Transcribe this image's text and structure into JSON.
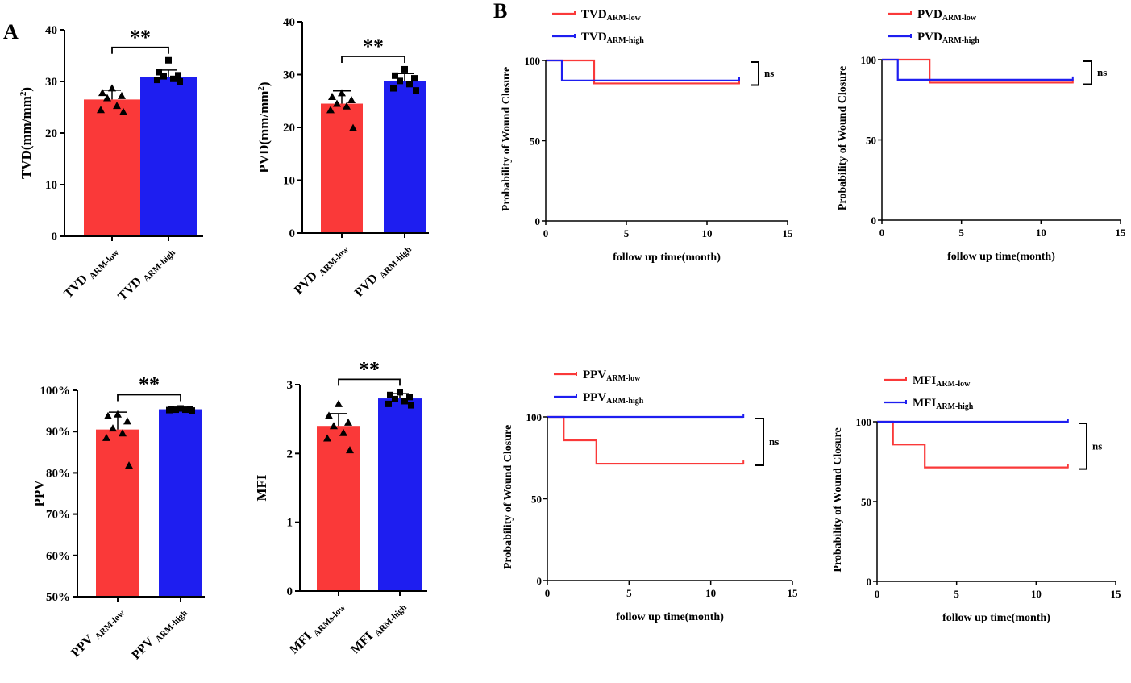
{
  "panels": {
    "A": "A",
    "B": "B"
  },
  "colors": {
    "low": "#fa3939",
    "high": "#1e1ef0",
    "axis": "#000000"
  },
  "chart_data": [
    {
      "id": "tvd-bar",
      "type": "bar",
      "ylabel": "TVD(mm/mm",
      "ylabel_sup": "2",
      "ylabel_suffix": ")",
      "ylim": [
        0,
        40
      ],
      "yticks": [
        0,
        10,
        20,
        30,
        40
      ],
      "ytick_labels": [
        "0",
        "10",
        "20",
        "30",
        "40"
      ],
      "categories": [
        {
          "main": "TVD",
          "sub": "ARM-low"
        },
        {
          "main": "TVD",
          "sub": "ARM-high"
        }
      ],
      "values": [
        26.5,
        30.8
      ],
      "errors": [
        1.8,
        1.4
      ],
      "points": [
        [
          28.7,
          27.8,
          27.2,
          26.8,
          25.3,
          24.5,
          24.1
        ],
        [
          34.1,
          31.8,
          31.2,
          31.0,
          30.5,
          30.3,
          30.0
        ]
      ],
      "significance": "**"
    },
    {
      "id": "pvd-bar",
      "type": "bar",
      "ylabel": "PVD(mm/mm",
      "ylabel_sup": "2",
      "ylabel_suffix": ")",
      "ylim": [
        0,
        40
      ],
      "yticks": [
        0,
        10,
        20,
        30,
        40
      ],
      "ytick_labels": [
        "0",
        "10",
        "20",
        "30",
        "40"
      ],
      "categories": [
        {
          "main": "PVD",
          "sub": "ARM-low"
        },
        {
          "main": "PVD",
          "sub": "ARM-high"
        }
      ],
      "values": [
        24.5,
        28.8
      ],
      "errors": [
        2.4,
        1.4
      ],
      "points": [
        [
          26.5,
          25.8,
          25.2,
          24.5,
          24.0,
          23.3,
          19.9
        ],
        [
          31.0,
          29.8,
          29.3,
          28.8,
          28.2,
          27.4,
          27.0
        ]
      ],
      "significance": "**"
    },
    {
      "id": "ppv-bar",
      "type": "bar",
      "ylabel": "PPV",
      "ylim": [
        50,
        100
      ],
      "yticks": [
        50,
        60,
        70,
        80,
        90,
        100
      ],
      "ytick_labels": [
        "50%",
        "60%",
        "70%",
        "80%",
        "90%",
        "100%"
      ],
      "categories": [
        {
          "main": "PPV",
          "sub": "ARM-low"
        },
        {
          "main": "PPV",
          "sub": "ARM-high"
        }
      ],
      "values": [
        90.5,
        95.4
      ],
      "errors": [
        4.2,
        0.4
      ],
      "points": [
        [
          94.2,
          93.8,
          92.5,
          90.8,
          89.6,
          88.5,
          81.8
        ],
        [
          95.6,
          95.5,
          95.4,
          95.3,
          95.3,
          95.2,
          95.1
        ]
      ],
      "significance": "**"
    },
    {
      "id": "mfi-bar",
      "type": "bar",
      "ylabel": "MFI",
      "ylim": [
        0,
        3
      ],
      "yticks": [
        0,
        1,
        2,
        3
      ],
      "ytick_labels": [
        "0",
        "1",
        "2",
        "3"
      ],
      "categories": [
        {
          "main": "MFI",
          "sub": "ARMs-low"
        },
        {
          "main": "MFI",
          "sub": "ARM-high"
        }
      ],
      "values": [
        2.4,
        2.8
      ],
      "errors": [
        0.18,
        0.07
      ],
      "points": [
        [
          2.72,
          2.55,
          2.45,
          2.4,
          2.3,
          2.22,
          2.05
        ],
        [
          2.89,
          2.85,
          2.82,
          2.79,
          2.76,
          2.72,
          2.7
        ]
      ],
      "significance": "**"
    },
    {
      "id": "tvd-km",
      "type": "line",
      "xlabel": "follow up time(month)",
      "ylabel": "Probability of Wound Closure",
      "xlim": [
        0,
        15
      ],
      "ylim": [
        0,
        100
      ],
      "xticks": [
        0,
        5,
        10,
        15
      ],
      "yticks": [
        0,
        50,
        100
      ],
      "series": [
        {
          "name": "TVD",
          "name_sub": "ARM-low",
          "x": [
            0,
            3,
            3,
            12
          ],
          "y": [
            100,
            100,
            85.7,
            85.7
          ]
        },
        {
          "name": "TVD",
          "name_sub": "ARM-high",
          "x": [
            0,
            1,
            1,
            12
          ],
          "y": [
            100,
            100,
            87.5,
            87.5
          ]
        }
      ],
      "annotation": "ns",
      "bracket": [
        85.7,
        100
      ]
    },
    {
      "id": "pvd-km",
      "type": "line",
      "xlabel": "follow up time(month)",
      "ylabel": "Probability of Wound Closure",
      "xlim": [
        0,
        15
      ],
      "ylim": [
        0,
        100
      ],
      "xticks": [
        0,
        5,
        10,
        15
      ],
      "yticks": [
        0,
        50,
        100
      ],
      "series": [
        {
          "name": "PVD",
          "name_sub": "ARM-low",
          "x": [
            0,
            3,
            3,
            12
          ],
          "y": [
            100,
            100,
            85.7,
            85.7
          ]
        },
        {
          "name": "PVD",
          "name_sub": "ARM-high",
          "x": [
            0,
            1,
            1,
            12
          ],
          "y": [
            100,
            100,
            87.5,
            87.5
          ]
        }
      ],
      "annotation": "ns",
      "bracket": [
        85.7,
        100
      ]
    },
    {
      "id": "ppv-km",
      "type": "line",
      "xlabel": "follow up time(month)",
      "ylabel": "Probability of Wound Closure",
      "xlim": [
        0,
        15
      ],
      "ylim": [
        0,
        100
      ],
      "xticks": [
        0,
        5,
        10,
        15
      ],
      "yticks": [
        0,
        50,
        100
      ],
      "series": [
        {
          "name": "PPV",
          "name_sub": "ARM-low",
          "x": [
            0,
            1,
            1,
            3,
            3,
            12
          ],
          "y": [
            100,
            100,
            85.7,
            85.7,
            71.4,
            71.4
          ]
        },
        {
          "name": "PPV",
          "name_sub": "ARM-high",
          "x": [
            0,
            12
          ],
          "y": [
            100,
            100
          ]
        }
      ],
      "annotation": "ns",
      "bracket": [
        71.4,
        100
      ]
    },
    {
      "id": "mfi-km",
      "type": "line",
      "xlabel": "follow up time(month)",
      "ylabel": "Probability of Wound Closure",
      "xlim": [
        0,
        15
      ],
      "ylim": [
        0,
        100
      ],
      "xticks": [
        0,
        5,
        10,
        15
      ],
      "yticks": [
        0,
        50,
        100
      ],
      "series": [
        {
          "name": "MFI",
          "name_sub": "ARM-low",
          "x": [
            0,
            1,
            1,
            3,
            3,
            12
          ],
          "y": [
            100,
            100,
            85.7,
            85.7,
            71.4,
            71.4
          ]
        },
        {
          "name": "MFI",
          "name_sub": "ARM-high",
          "x": [
            0,
            12
          ],
          "y": [
            100,
            100
          ]
        }
      ],
      "annotation": "ns",
      "bracket": [
        71.4,
        100
      ]
    }
  ]
}
